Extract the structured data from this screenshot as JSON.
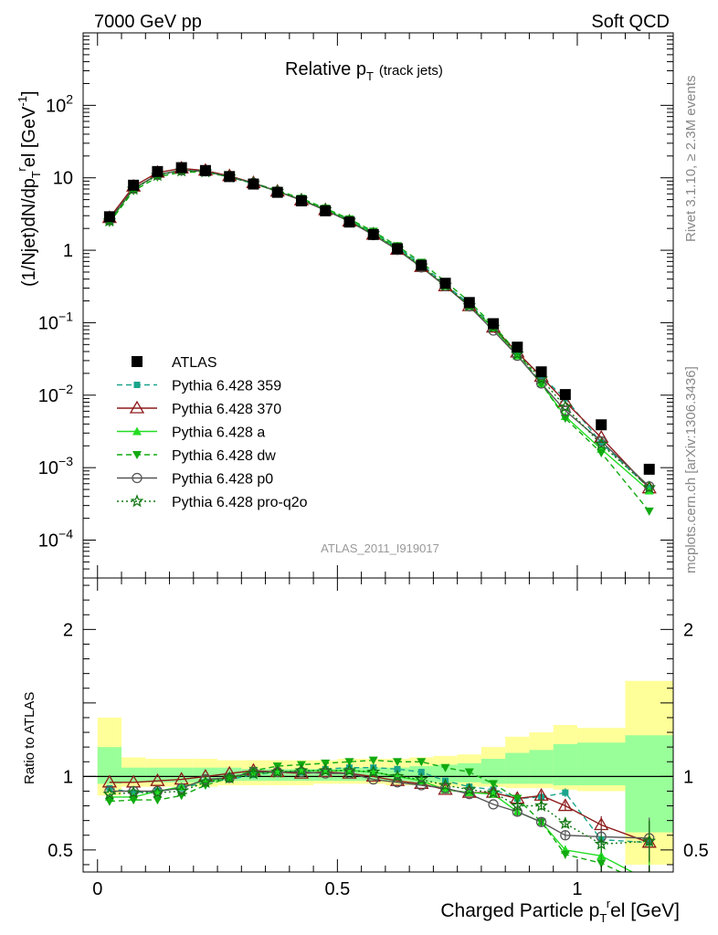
{
  "header": {
    "left": "7000 GeV pp",
    "right": "Soft QCD"
  },
  "side_labels": {
    "rivet": "Rivet 3.1.10, ≥ 2.3M events",
    "mcplots": "mcplots.cern.ch [arXiv:1306.3436]"
  },
  "watermark": "ATLAS_2011_I919017",
  "chart_data": [
    {
      "type": "line",
      "title": "Relative p_T (track jets)",
      "title_main": "Relative p",
      "title_sub": "T",
      "title_note": "(track jets)",
      "ylabel_parts": [
        "(1/Njet)dN/dp",
        "T",
        "r",
        "el [GeV",
        "-1",
        "]"
      ],
      "yscale": "log",
      "ylim": [
        3e-05,
        1000
      ],
      "xlim": [
        -0.03,
        1.2
      ],
      "y_ticks": [
        "10^-4",
        "10^-3",
        "10^-2",
        "10^-1",
        "1",
        "10",
        "10^2"
      ],
      "legend_placement": "left-middle",
      "x": [
        0.025,
        0.075,
        0.125,
        0.175,
        0.225,
        0.275,
        0.325,
        0.375,
        0.425,
        0.475,
        0.525,
        0.575,
        0.625,
        0.675,
        0.725,
        0.775,
        0.825,
        0.875,
        0.925,
        0.975,
        1.05,
        1.15
      ],
      "series": [
        {
          "name": "ATLAS",
          "color": "#000000",
          "marker": "square",
          "style": "none",
          "values": [
            2.9,
            7.9,
            12.2,
            13.8,
            12.6,
            10.4,
            8.2,
            6.3,
            4.8,
            3.5,
            2.45,
            1.65,
            1.05,
            0.62,
            0.35,
            0.19,
            0.097,
            0.046,
            0.021,
            0.0102,
            0.0039,
            0.00095
          ]
        },
        {
          "name": "Pythia 6.428 359",
          "color": "#1aa58c",
          "marker": "square-small",
          "style": "dashed",
          "values": [
            2.7,
            7.1,
            11.0,
            12.7,
            12.1,
            10.2,
            8.3,
            6.5,
            4.95,
            3.7,
            2.6,
            1.75,
            1.1,
            0.64,
            0.34,
            0.18,
            0.088,
            0.039,
            0.018,
            0.0091,
            0.0022,
            0.00052
          ]
        },
        {
          "name": "Pythia 6.428 370",
          "color": "#8c1a1a",
          "marker": "triangle-open",
          "style": "solid",
          "values": [
            2.8,
            7.6,
            11.8,
            13.5,
            12.6,
            10.6,
            8.5,
            6.5,
            4.9,
            3.6,
            2.5,
            1.65,
            1.02,
            0.59,
            0.32,
            0.17,
            0.086,
            0.039,
            0.018,
            0.0081,
            0.0026,
            0.00052
          ]
        },
        {
          "name": "Pythia 6.428 a",
          "color": "#22dd22",
          "marker": "triangle",
          "style": "solid",
          "values": [
            2.5,
            7.0,
            11.0,
            12.8,
            12.2,
            10.3,
            8.4,
            6.5,
            5.0,
            3.65,
            2.55,
            1.7,
            1.05,
            0.6,
            0.32,
            0.17,
            0.085,
            0.035,
            0.0145,
            0.0051,
            0.0018,
            0.00048
          ]
        },
        {
          "name": "Pythia 6.428 dw",
          "color": "#11aa11",
          "marker": "triangle-down",
          "style": "dashed",
          "values": [
            2.4,
            6.6,
            10.2,
            12.0,
            11.9,
            10.3,
            8.5,
            6.7,
            5.2,
            3.8,
            2.7,
            1.82,
            1.15,
            0.68,
            0.37,
            0.195,
            0.092,
            0.039,
            0.0145,
            0.0048,
            0.0016,
            0.00025
          ]
        },
        {
          "name": "Pythia 6.428 p0",
          "color": "#555555",
          "marker": "circle-open",
          "style": "solid",
          "values": [
            2.6,
            7.1,
            11.0,
            12.7,
            12.3,
            10.3,
            8.5,
            6.5,
            4.95,
            3.55,
            2.5,
            1.62,
            1.01,
            0.58,
            0.32,
            0.168,
            0.078,
            0.035,
            0.0145,
            0.0061,
            0.0023,
            0.00055
          ]
        },
        {
          "name": "Pythia 6.428 pro-q2o",
          "color": "#117711",
          "marker": "star-open",
          "style": "dotted",
          "values": [
            2.55,
            7.0,
            10.8,
            12.5,
            12.1,
            10.3,
            8.4,
            6.5,
            5.0,
            3.65,
            2.55,
            1.7,
            1.05,
            0.61,
            0.33,
            0.172,
            0.087,
            0.037,
            0.0168,
            0.0069,
            0.0021,
            0.00053
          ]
        }
      ]
    },
    {
      "type": "line",
      "ylabel": "Ratio to ATLAS",
      "xlabel_parts": [
        "Charged Particle p",
        "T",
        "r",
        "el [GeV]"
      ],
      "ylim": [
        0.35,
        2.35
      ],
      "xlim": [
        -0.03,
        1.2
      ],
      "y_ticks": [
        "0.5",
        "1",
        "2"
      ],
      "x_ticks": [
        "0",
        "0.5",
        "1"
      ],
      "reference_line": 1,
      "x_edges": [
        0,
        0.05,
        0.1,
        0.15,
        0.2,
        0.25,
        0.3,
        0.35,
        0.4,
        0.45,
        0.5,
        0.55,
        0.6,
        0.65,
        0.7,
        0.75,
        0.8,
        0.85,
        0.9,
        0.95,
        1.0,
        1.1,
        1.2
      ],
      "band_outer": {
        "color": "#ffff99",
        "low": [
          0.87,
          0.93,
          0.93,
          0.93,
          0.93,
          0.94,
          0.94,
          0.94,
          0.94,
          0.95,
          0.95,
          0.95,
          0.94,
          0.94,
          0.93,
          0.93,
          0.93,
          0.92,
          0.92,
          0.91,
          0.9,
          0.4
        ],
        "high": [
          1.4,
          1.13,
          1.12,
          1.12,
          1.12,
          1.11,
          1.11,
          1.11,
          1.11,
          1.11,
          1.12,
          1.12,
          1.12,
          1.13,
          1.14,
          1.15,
          1.2,
          1.27,
          1.3,
          1.35,
          1.33,
          1.65
        ]
      },
      "band_inner": {
        "color": "#99ff99",
        "low": [
          0.95,
          0.96,
          0.96,
          0.96,
          0.96,
          0.97,
          0.97,
          0.97,
          0.97,
          0.97,
          0.97,
          0.97,
          0.97,
          0.96,
          0.96,
          0.96,
          0.95,
          0.95,
          0.95,
          0.94,
          0.94,
          0.62
        ],
        "high": [
          1.2,
          1.06,
          1.06,
          1.06,
          1.06,
          1.06,
          1.05,
          1.05,
          1.05,
          1.05,
          1.06,
          1.06,
          1.06,
          1.07,
          1.08,
          1.09,
          1.12,
          1.16,
          1.18,
          1.22,
          1.23,
          1.28
        ]
      },
      "x": [
        0.025,
        0.075,
        0.125,
        0.175,
        0.225,
        0.275,
        0.325,
        0.375,
        0.425,
        0.475,
        0.525,
        0.575,
        0.625,
        0.675,
        0.725,
        0.775,
        0.825,
        0.875,
        0.925,
        0.975,
        1.05,
        1.15
      ],
      "series": [
        {
          "name": "Pythia 6.428 359",
          "color": "#1aa58c",
          "marker": "square-small",
          "style": "dashed",
          "values": [
            0.92,
            0.89,
            0.9,
            0.92,
            0.96,
            0.98,
            1.01,
            1.03,
            1.03,
            1.05,
            1.06,
            1.06,
            1.05,
            1.03,
            0.97,
            0.93,
            0.91,
            0.85,
            0.86,
            0.89,
            0.57,
            0.55
          ]
        },
        {
          "name": "Pythia 6.428 370",
          "color": "#8c1a1a",
          "marker": "triangle-open",
          "style": "solid",
          "values": [
            0.96,
            0.96,
            0.97,
            0.98,
            1.0,
            1.02,
            1.04,
            1.03,
            1.02,
            1.03,
            1.02,
            1.0,
            0.97,
            0.95,
            0.91,
            0.89,
            0.89,
            0.85,
            0.87,
            0.8,
            0.67,
            0.55
          ]
        },
        {
          "name": "Pythia 6.428 a",
          "color": "#22dd22",
          "marker": "triangle",
          "style": "solid",
          "values": [
            0.86,
            0.86,
            0.9,
            0.93,
            0.97,
            0.99,
            1.02,
            1.03,
            1.04,
            1.04,
            1.04,
            1.03,
            1.0,
            0.97,
            0.91,
            0.89,
            0.88,
            0.76,
            0.69,
            0.5,
            0.46,
            0.29
          ]
        },
        {
          "name": "Pythia 6.428 dw",
          "color": "#11aa11",
          "marker": "triangle-down",
          "style": "dashed",
          "values": [
            0.83,
            0.84,
            0.84,
            0.87,
            0.94,
            0.99,
            1.04,
            1.07,
            1.08,
            1.09,
            1.1,
            1.11,
            1.1,
            1.1,
            1.06,
            1.03,
            0.95,
            0.85,
            0.69,
            0.47,
            0.41,
            0.26
          ]
        },
        {
          "name": "Pythia 6.428 p0",
          "color": "#555555",
          "marker": "circle-open",
          "style": "solid",
          "values": [
            0.9,
            0.9,
            0.9,
            0.92,
            0.98,
            0.99,
            1.03,
            1.03,
            1.03,
            1.02,
            1.02,
            0.98,
            0.96,
            0.94,
            0.92,
            0.88,
            0.81,
            0.76,
            0.69,
            0.6,
            0.59,
            0.58
          ]
        },
        {
          "name": "Pythia 6.428 pro-q2o",
          "color": "#117711",
          "marker": "star-open",
          "style": "dotted",
          "values": [
            0.88,
            0.89,
            0.89,
            0.9,
            0.96,
            0.99,
            1.02,
            1.03,
            1.04,
            1.04,
            1.04,
            1.03,
            1.0,
            0.98,
            0.94,
            0.91,
            0.89,
            0.8,
            0.8,
            0.68,
            0.54,
            0.56
          ]
        }
      ]
    }
  ]
}
